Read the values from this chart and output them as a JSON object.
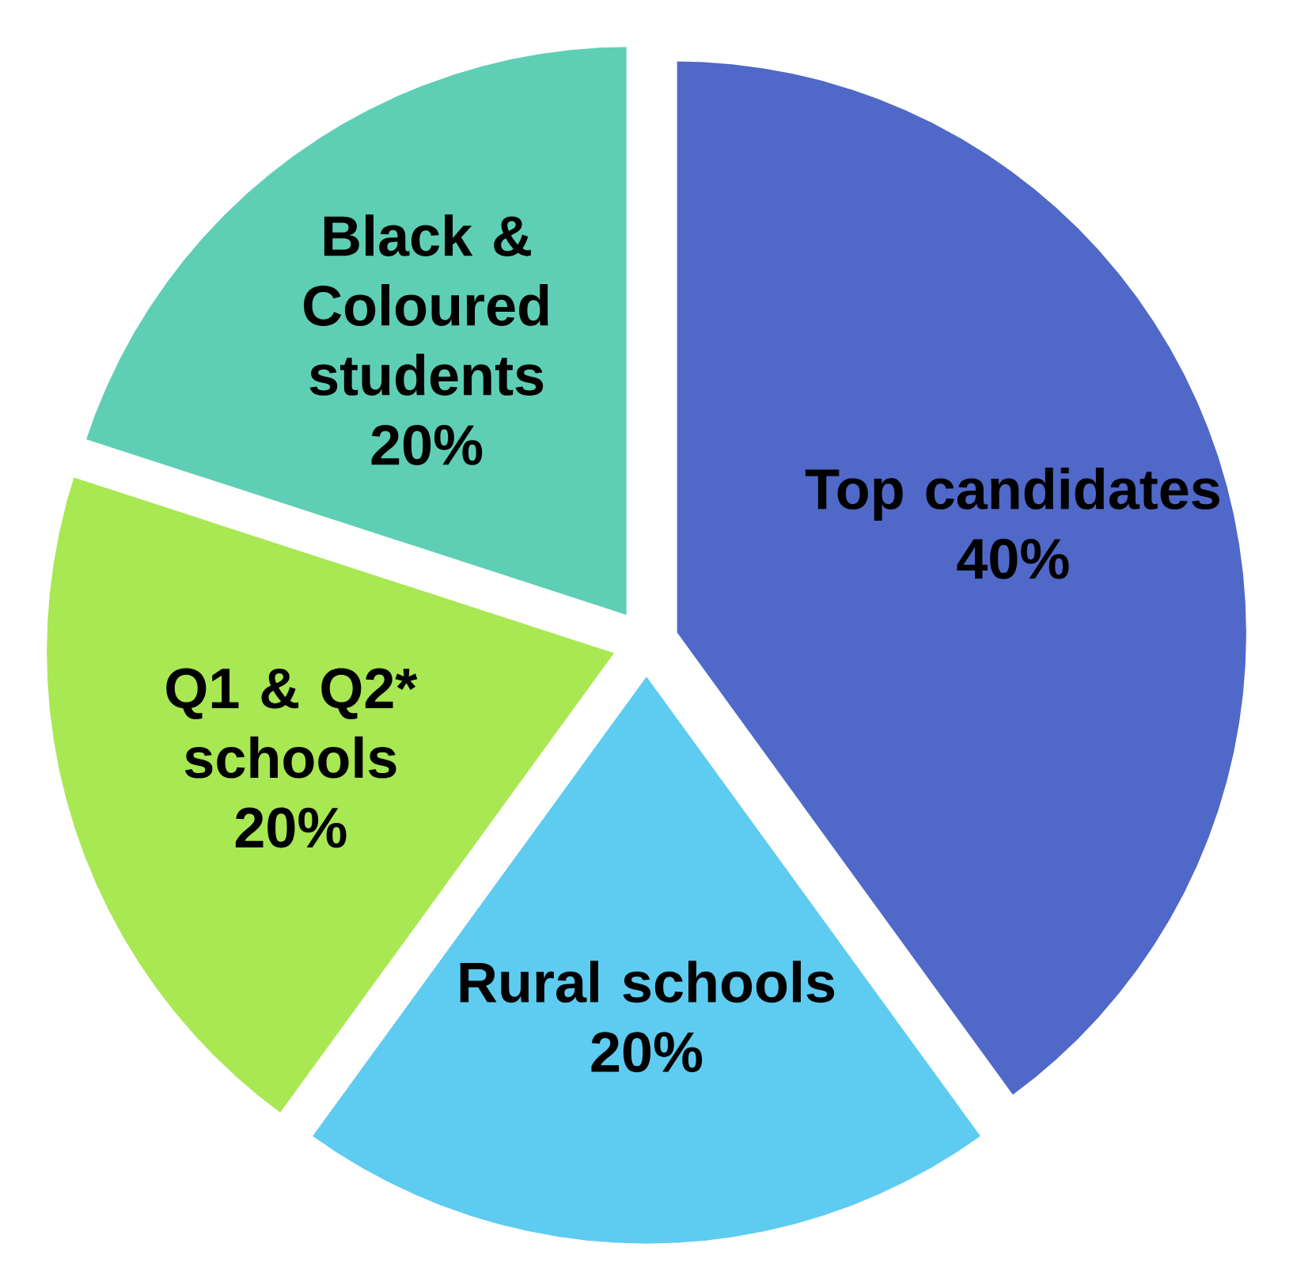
{
  "chart_data": {
    "type": "pie",
    "categories": [
      "Top candidates",
      "Rural  schools",
      "Q1 & Q2* schools",
      "Black & Coloured students"
    ],
    "values": [
      40,
      20,
      20,
      20
    ],
    "colors": [
      "#5068c8",
      "#5ecbf0",
      "#a8e852",
      "#5ecfb4"
    ],
    "value_labels": [
      "40%",
      "20%",
      "20%",
      "20%"
    ]
  }
}
